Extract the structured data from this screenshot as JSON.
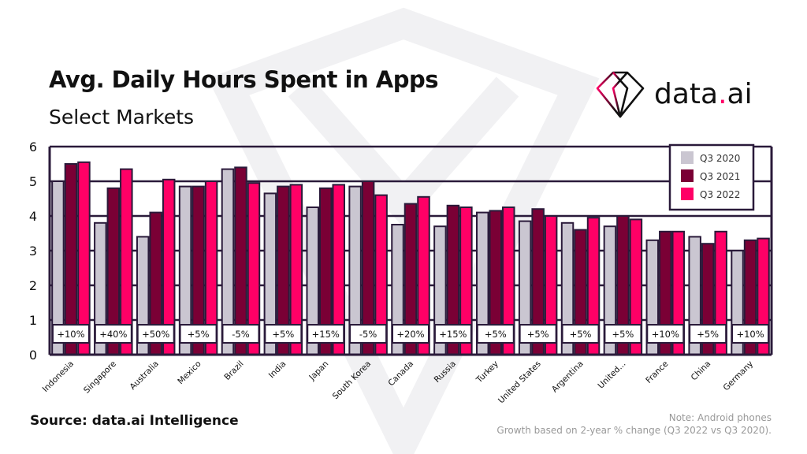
{
  "title": "Avg. Daily Hours Spent in Apps",
  "subtitle": "Select Markets",
  "logo": {
    "name": "data",
    "dot": ".",
    "suffix": "ai"
  },
  "source": "Source: data.ai Intelligence",
  "notes": [
    "Note: Android phones",
    "Growth based on 2-year % change (Q3 2022 vs Q3 2020)."
  ],
  "colors": {
    "q3_2020": "#cac6d1",
    "q3_2021": "#7a0035",
    "q3_2022": "#ff0066",
    "outline": "#2a1a3a"
  },
  "chart_data": {
    "type": "bar",
    "title": "Avg. Daily Hours Spent in Apps",
    "subtitle": "Select Markets",
    "xlabel": "",
    "ylabel": "",
    "ylim": [
      0,
      6
    ],
    "yticks": [
      0,
      1,
      2,
      3,
      4,
      5,
      6
    ],
    "grid": true,
    "legend_position": "top-right",
    "categories": [
      "Indonesia",
      "Singapore",
      "Australia",
      "Mexico",
      "Brazil",
      "India",
      "Japan",
      "South Korea",
      "Canada",
      "Russia",
      "Turkey",
      "United States",
      "Argentina",
      "United...",
      "France",
      "China",
      "Germany"
    ],
    "series": [
      {
        "name": "Q3 2020",
        "values": [
          5.0,
          3.8,
          3.4,
          4.85,
          5.35,
          4.65,
          4.25,
          4.85,
          3.75,
          3.7,
          4.1,
          3.85,
          3.8,
          3.7,
          3.3,
          3.4,
          3.0
        ]
      },
      {
        "name": "Q3 2021",
        "values": [
          5.5,
          4.8,
          4.1,
          4.85,
          5.4,
          4.85,
          4.8,
          5.0,
          4.35,
          4.3,
          4.15,
          4.2,
          3.6,
          4.0,
          3.55,
          3.2,
          3.3
        ]
      },
      {
        "name": "Q3 2022",
        "values": [
          5.55,
          5.35,
          5.05,
          5.0,
          4.95,
          4.9,
          4.9,
          4.6,
          4.55,
          4.25,
          4.25,
          4.0,
          3.95,
          3.9,
          3.55,
          3.55,
          3.35
        ]
      }
    ],
    "growth_labels": [
      "+10%",
      "+40%",
      "+50%",
      "+5%",
      "-5%",
      "+5%",
      "+15%",
      "-5%",
      "+20%",
      "+15%",
      "+5%",
      "+5%",
      "+5%",
      "+5%",
      "+10%",
      "+5%",
      "+10%"
    ]
  }
}
